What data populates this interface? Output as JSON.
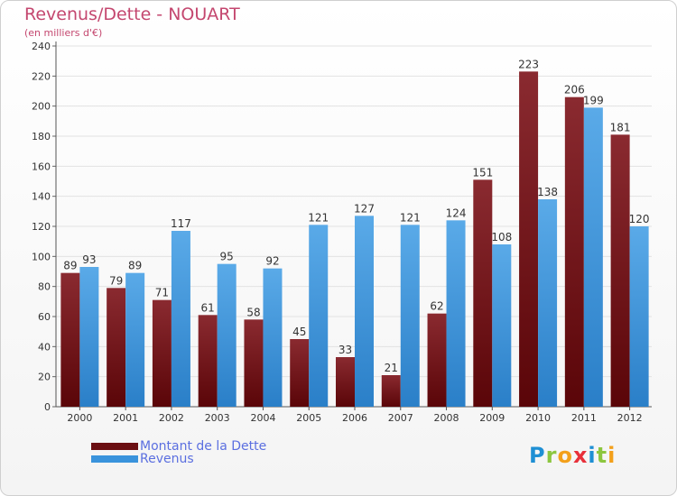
{
  "header": {
    "title": "Revenus/Dette - NOUART",
    "subtitle": "(en milliers d'€)"
  },
  "legend": {
    "items": [
      {
        "label": "Montant de la Dette",
        "color": "#6b0f12"
      },
      {
        "label": "Revenus",
        "color": "#3a93dc"
      }
    ]
  },
  "logo": {
    "letters": [
      "P",
      "r",
      "o",
      "x",
      "i",
      "t",
      "i"
    ],
    "colors": [
      "#1e8fd4",
      "#8cc63f",
      "#f3a01b",
      "#e8303a",
      "#1e8fd4",
      "#8cc63f",
      "#f3a01b"
    ]
  },
  "chart_data": {
    "type": "bar",
    "categories": [
      "2000",
      "2001",
      "2002",
      "2003",
      "2004",
      "2005",
      "2006",
      "2007",
      "2008",
      "2009",
      "2010",
      "2011",
      "2012"
    ],
    "series": [
      {
        "name": "Montant de la Dette",
        "values": [
          89,
          79,
          71,
          61,
          58,
          45,
          33,
          21,
          62,
          151,
          223,
          206,
          181
        ]
      },
      {
        "name": "Revenus",
        "values": [
          93,
          89,
          117,
          95,
          92,
          121,
          127,
          121,
          124,
          108,
          138,
          199,
          120
        ]
      }
    ],
    "yticks": [
      "0",
      "20",
      "40",
      "60",
      "80",
      "100",
      "120",
      "140",
      "160",
      "180",
      "200",
      "220",
      "240"
    ],
    "ylim": [
      0,
      240
    ],
    "grid": true,
    "legend_position": "bottom-left"
  }
}
